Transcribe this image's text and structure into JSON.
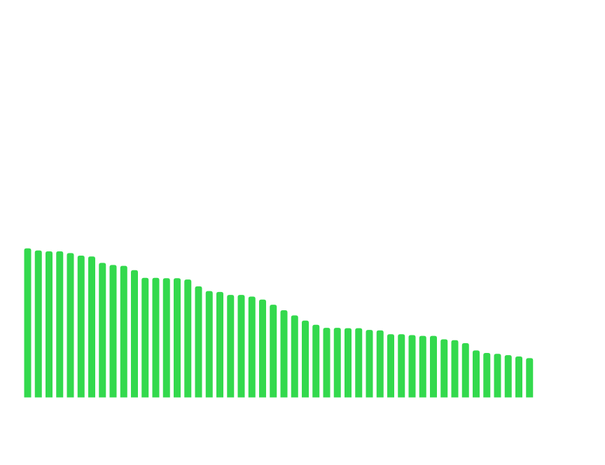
{
  "chart_data": {
    "type": "bar",
    "title": "",
    "xlabel": "",
    "ylabel": "",
    "grid": false,
    "legend": "none",
    "ylim": [
      0,
      100
    ],
    "bar_color": "#33d94d",
    "values": [
      34.9,
      34.4,
      34.2,
      34.2,
      33.8,
      33.2,
      33.0,
      31.5,
      31.0,
      30.8,
      29.8,
      28.0,
      28.0,
      27.9,
      27.9,
      27.6,
      26.0,
      24.9,
      24.7,
      24.0,
      24.0,
      23.6,
      22.9,
      21.7,
      20.4,
      19.2,
      18.0,
      17.0,
      16.3,
      16.3,
      16.2,
      16.2,
      15.8,
      15.7,
      14.8,
      14.8,
      14.6,
      14.4,
      14.4,
      13.6,
      13.4,
      12.7,
      11.0,
      10.4,
      10.2,
      9.9,
      9.6,
      9.2
    ]
  }
}
